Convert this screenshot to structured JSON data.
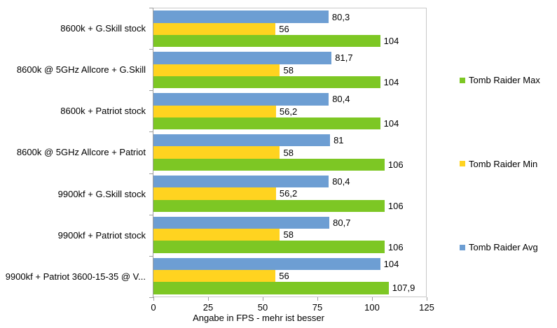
{
  "chart_data": {
    "type": "bar",
    "orientation": "horizontal",
    "title": "",
    "xlabel": "Angabe in FPS - mehr ist besser",
    "ylabel": "",
    "xlim": [
      0,
      125
    ],
    "x_ticks": [
      "0",
      "25",
      "50",
      "75",
      "100",
      "125"
    ],
    "grid": false,
    "legend_position": "right",
    "categories": [
      "8600k + G.Skill stock",
      "8600k @ 5GHz Allcore + G.Skill",
      "8600k + Patriot stock",
      "8600k @ 5GHz Allcore + Patriot",
      "9900kf + G.Skill stock",
      "9900kf + Patriot stock",
      "9900kf + Patriot 3600-15-35 @ V..."
    ],
    "series": [
      {
        "name": "Tomb Raider Avg",
        "color": "#6D9ED3",
        "values": [
          80.3,
          81.7,
          80.4,
          81,
          80.4,
          80.7,
          104
        ],
        "display_labels": [
          "80,3",
          "81,7",
          "80,4",
          "81",
          "80,4",
          "80,7",
          "104"
        ]
      },
      {
        "name": "Tomb Raider Min",
        "color": "#FFD320",
        "values": [
          56,
          58,
          56.2,
          58,
          56.2,
          58,
          56
        ],
        "display_labels": [
          "56",
          "58",
          "56,2",
          "58",
          "56,2",
          "58",
          "56"
        ]
      },
      {
        "name": "Tomb Raider Max",
        "color": "#7DC724",
        "values": [
          104,
          104,
          104,
          106,
          106,
          106,
          107.9
        ],
        "display_labels": [
          "104",
          "104",
          "104",
          "106",
          "106",
          "106",
          "107,9"
        ]
      }
    ],
    "legend_entries": [
      "Tomb Raider Max",
      "Tomb Raider Min",
      "Tomb Raider Avg"
    ]
  }
}
